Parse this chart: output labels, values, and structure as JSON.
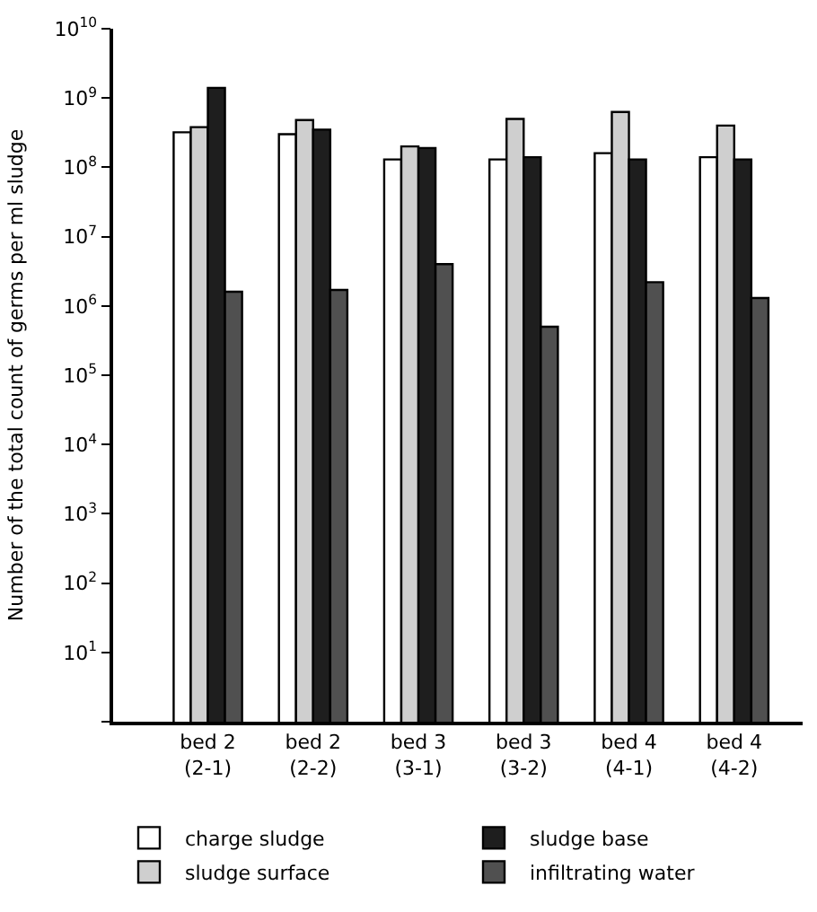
{
  "chart_data": {
    "type": "bar",
    "ylabel": "Number of the total count of germs per ml sludge",
    "categories": [
      "bed 2\n(2-1)",
      "bed 2\n(2-2)",
      "bed 3\n(3-1)",
      "bed 3\n(3-2)",
      "bed 4\n(4-1)",
      "bed 4\n(4-2)"
    ],
    "series": [
      {
        "name": "charge sludge",
        "color": "#ffffff",
        "values": [
          320000000.0,
          300000000.0,
          130000000.0,
          130000000.0,
          160000000.0,
          140000000.0
        ]
      },
      {
        "name": "sludge surface",
        "color": "#cfcfcf",
        "values": [
          380000000.0,
          480000000.0,
          200000000.0,
          500000000.0,
          630000000.0,
          400000000.0
        ]
      },
      {
        "name": "sludge base",
        "color": "#1e1e1e",
        "values": [
          1400000000.0,
          350000000.0,
          190000000.0,
          140000000.0,
          130000000.0,
          130000000.0
        ]
      },
      {
        "name": "infiltrating water",
        "color": "#505050",
        "values": [
          1600000.0,
          1700000.0,
          4000000.0,
          500000.0,
          2200000.0,
          1300000.0
        ]
      }
    ],
    "log": true,
    "ylim": [
      1,
      10000000000.0
    ],
    "yticks": [
      {
        "value": 1,
        "label": null
      },
      {
        "value": 10,
        "label": "10$^{1}$"
      },
      {
        "value": 100,
        "label": "10$^{2}$"
      },
      {
        "value": 1000,
        "label": "10$^{3}$"
      },
      {
        "value": 10000,
        "label": "10$^{4}$"
      },
      {
        "value": 100000,
        "label": "10$^{5}$"
      },
      {
        "value": 1000000,
        "label": "10$^{6}$"
      },
      {
        "value": 10000000,
        "label": "10$^{7}$"
      },
      {
        "value": 100000000,
        "label": "10$^{8}$"
      },
      {
        "value": 1000000000,
        "label": "10$^{9}$"
      },
      {
        "value": 10000000000,
        "label": "10$^{10}$"
      }
    ],
    "legend": "bottom"
  }
}
